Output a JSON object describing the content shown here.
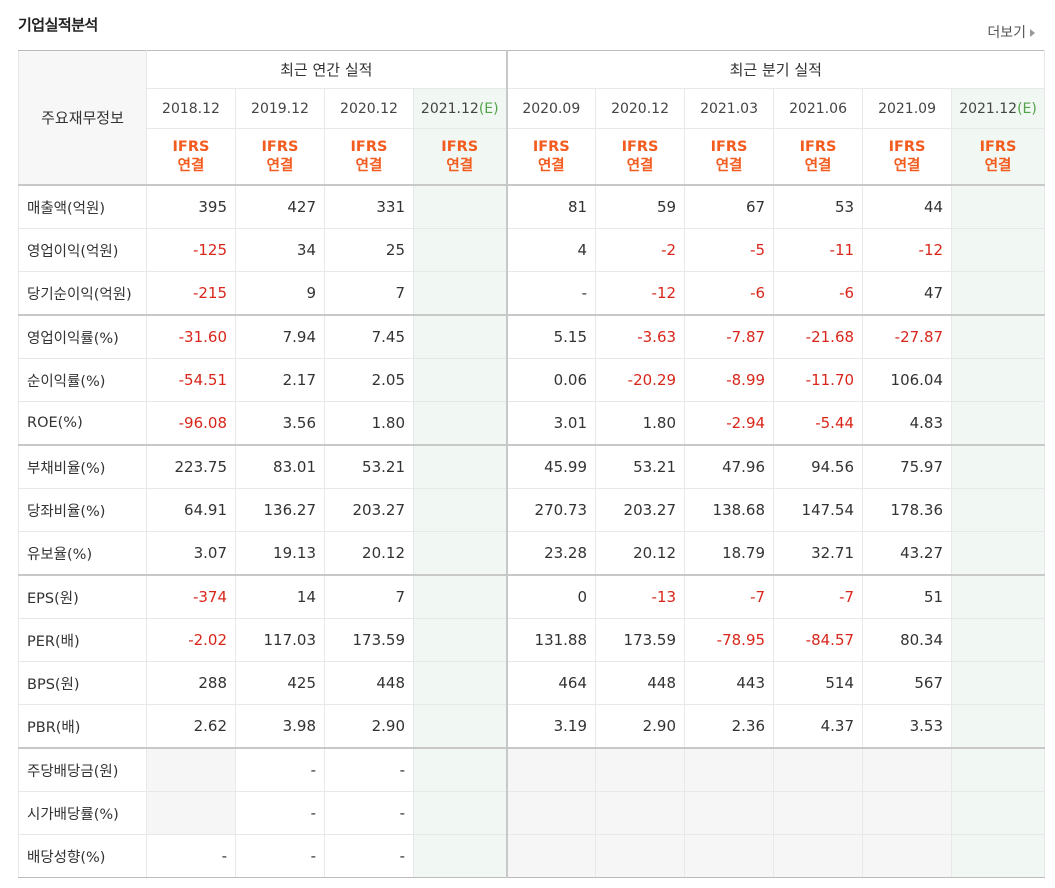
{
  "title": "기업실적분석",
  "more_label": "더보기",
  "header": {
    "row_label": "주요재무정보",
    "annual_label": "최근 연간 실적",
    "quarter_label": "최근 분기 실적",
    "basis_line1": "IFRS",
    "basis_line2": "연결",
    "annual_periods": [
      "2018.12",
      "2019.12",
      "2020.12",
      "2021.12"
    ],
    "quarter_periods": [
      "2020.09",
      "2020.12",
      "2021.03",
      "2021.06",
      "2021.09",
      "2021.12"
    ],
    "est_tag": "(E)"
  },
  "rows": [
    {
      "label": "매출액(억원)",
      "annual": [
        "395",
        "427",
        "331",
        ""
      ],
      "quarter": [
        "81",
        "59",
        "67",
        "53",
        "44",
        ""
      ]
    },
    {
      "label": "영업이익(억원)",
      "annual": [
        "-125",
        "34",
        "25",
        ""
      ],
      "quarter": [
        "4",
        "-2",
        "-5",
        "-11",
        "-12",
        ""
      ]
    },
    {
      "label": "당기순이익(억원)",
      "annual": [
        "-215",
        "9",
        "7",
        ""
      ],
      "quarter": [
        "-",
        "-12",
        "-6",
        "-6",
        "47",
        ""
      ]
    },
    {
      "label": "영업이익률(%)",
      "annual": [
        "-31.60",
        "7.94",
        "7.45",
        ""
      ],
      "quarter": [
        "5.15",
        "-3.63",
        "-7.87",
        "-21.68",
        "-27.87",
        ""
      ]
    },
    {
      "label": "순이익률(%)",
      "annual": [
        "-54.51",
        "2.17",
        "2.05",
        ""
      ],
      "quarter": [
        "0.06",
        "-20.29",
        "-8.99",
        "-11.70",
        "106.04",
        ""
      ]
    },
    {
      "label": "ROE(%)",
      "annual": [
        "-96.08",
        "3.56",
        "1.80",
        ""
      ],
      "quarter": [
        "3.01",
        "1.80",
        "-2.94",
        "-5.44",
        "4.83",
        ""
      ]
    },
    {
      "label": "부채비율(%)",
      "annual": [
        "223.75",
        "83.01",
        "53.21",
        ""
      ],
      "quarter": [
        "45.99",
        "53.21",
        "47.96",
        "94.56",
        "75.97",
        ""
      ]
    },
    {
      "label": "당좌비율(%)",
      "annual": [
        "64.91",
        "136.27",
        "203.27",
        ""
      ],
      "quarter": [
        "270.73",
        "203.27",
        "138.68",
        "147.54",
        "178.36",
        ""
      ]
    },
    {
      "label": "유보율(%)",
      "annual": [
        "3.07",
        "19.13",
        "20.12",
        ""
      ],
      "quarter": [
        "23.28",
        "20.12",
        "18.79",
        "32.71",
        "43.27",
        ""
      ]
    },
    {
      "label": "EPS(원)",
      "annual": [
        "-374",
        "14",
        "7",
        ""
      ],
      "quarter": [
        "0",
        "-13",
        "-7",
        "-7",
        "51",
        ""
      ]
    },
    {
      "label": "PER(배)",
      "annual": [
        "-2.02",
        "117.03",
        "173.59",
        ""
      ],
      "quarter": [
        "131.88",
        "173.59",
        "-78.95",
        "-84.57",
        "80.34",
        ""
      ]
    },
    {
      "label": "BPS(원)",
      "annual": [
        "288",
        "425",
        "448",
        ""
      ],
      "quarter": [
        "464",
        "448",
        "443",
        "514",
        "567",
        ""
      ]
    },
    {
      "label": "PBR(배)",
      "annual": [
        "2.62",
        "3.98",
        "2.90",
        ""
      ],
      "quarter": [
        "3.19",
        "2.90",
        "2.36",
        "4.37",
        "3.53",
        ""
      ]
    },
    {
      "label": "주당배당금(원)",
      "annual": [
        "",
        "-",
        "-",
        ""
      ],
      "quarter": [
        "",
        "",
        "",
        "",
        "",
        ""
      ]
    },
    {
      "label": "시가배당률(%)",
      "annual": [
        "",
        "-",
        "-",
        ""
      ],
      "quarter": [
        "",
        "",
        "",
        "",
        "",
        ""
      ]
    },
    {
      "label": "배당성향(%)",
      "annual": [
        "-",
        "-",
        "-",
        ""
      ],
      "quarter": [
        "",
        "",
        "",
        "",
        "",
        ""
      ]
    }
  ],
  "colors": {
    "negative": "#d9261b",
    "ifrs": "#f35c1f",
    "estimate_tag": "#52a34a",
    "estimate_bg": "#f1f7f2"
  }
}
